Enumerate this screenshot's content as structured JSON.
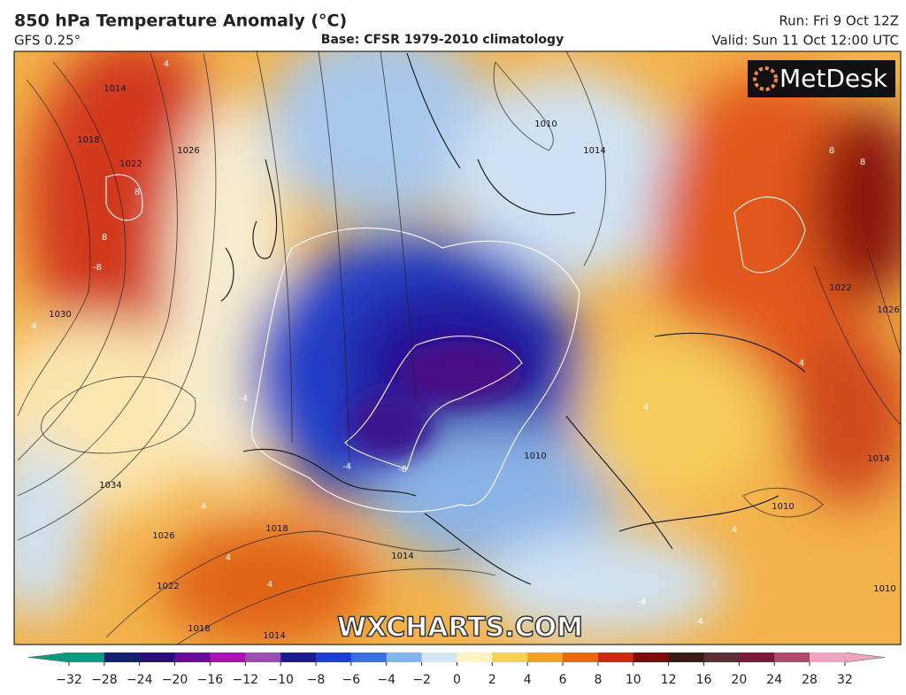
{
  "header": {
    "title": "850 hPa Temperature Anomaly (°C)",
    "model": "GFS 0.25°",
    "base": "Base: CFSR 1979-2010 climatology",
    "run": "Run: Fri 9 Oct 12Z",
    "valid": "Valid: Sun 11 Oct 12:00 UTC"
  },
  "logo": "MetDesk",
  "watermark": "WXCHARTS.COM",
  "map": {
    "isobar_labels": [
      1014,
      1018,
      1022,
      1026,
      1030,
      1034,
      1026,
      1022,
      1018,
      1014,
      1018,
      1014,
      1010,
      1014,
      1010,
      1010,
      1026,
      1022,
      1014,
      1010
    ],
    "anomaly_labels": [
      4,
      8,
      8,
      -8,
      4,
      -4,
      -8,
      -4,
      4,
      4,
      4,
      -4,
      -4,
      8,
      8,
      4,
      4,
      4
    ]
  },
  "colorbar": {
    "ticks": [
      {
        "value": -32,
        "label": "−32"
      },
      {
        "value": -28,
        "label": "−28"
      },
      {
        "value": -24,
        "label": "−24"
      },
      {
        "value": -20,
        "label": "−20"
      },
      {
        "value": -16,
        "label": "−16"
      },
      {
        "value": -12,
        "label": "−12"
      },
      {
        "value": -10,
        "label": "−10"
      },
      {
        "value": -8,
        "label": "−8"
      },
      {
        "value": -6,
        "label": "−6"
      },
      {
        "value": -4,
        "label": "−4"
      },
      {
        "value": -2,
        "label": "−2"
      },
      0,
      2,
      4,
      6,
      8,
      10,
      12,
      16,
      20,
      24,
      28,
      32
    ],
    "colors": [
      "#0a9a80",
      "#13216e",
      "#2a0c7a",
      "#6a0a9a",
      "#a712b0",
      "#9a4fb0",
      "#1d1c8f",
      "#1f3fd0",
      "#3b6fe0",
      "#84b4ec",
      "#d6e6f4",
      "#fff3c4",
      "#f6cf55",
      "#f2a128",
      "#ea6a14",
      "#cc2b0e",
      "#7a0d0a",
      "#3a1a14",
      "#5a3036",
      "#7a1a3a",
      "#b04a6a",
      "#eea6c0"
    ]
  }
}
